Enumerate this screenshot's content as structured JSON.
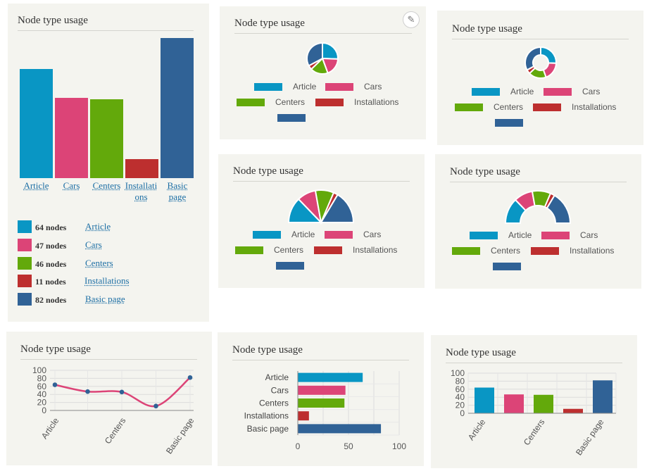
{
  "panel_title": "Node type usage",
  "edit_icon": "pencil-icon",
  "nodes_suffix": "nodes",
  "colors": {
    "Article": "#0996c4",
    "Cars": "#dc4477",
    "Centers": "#63a90b",
    "Installations": "#bd2f2f",
    "Basic page": "#306296"
  },
  "chart_data": {
    "type": "bar",
    "categories": [
      "Article",
      "Cars",
      "Centers",
      "Installations",
      "Basic page"
    ],
    "values": [
      64,
      47,
      46,
      11,
      82
    ],
    "title": "Node type usage",
    "xlabel": "",
    "ylabel": "",
    "ylim": [
      0,
      100
    ],
    "yticks": [
      0,
      20,
      40,
      60,
      80,
      100
    ],
    "xticks_hbar": [
      0,
      50,
      100
    ]
  }
}
